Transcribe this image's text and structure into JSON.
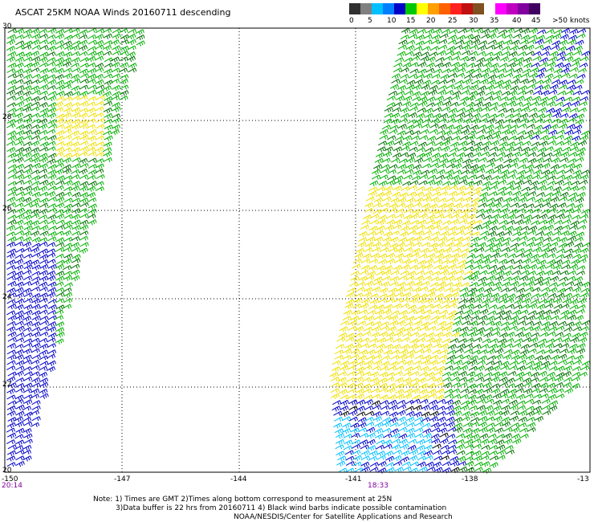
{
  "header": {
    "title": "ASCAT 25KM NOAA Winds 20160711 descending"
  },
  "legend": {
    "colors": [
      "#303030",
      "#808080",
      "#00c0ff",
      "#0080ff",
      "#0000c8",
      "#00c800",
      "#ffff00",
      "#ffa000",
      "#ff6000",
      "#ff2020",
      "#c01010",
      "#805020",
      "#ffffff",
      "#ff00ff",
      "#c000c0",
      "#8000a0",
      "#400060"
    ],
    "labels": [
      "0",
      "5",
      "10",
      "15",
      "20",
      "25",
      "30",
      "35",
      "40",
      "45",
      ">50 knots"
    ]
  },
  "axes": {
    "lat_labels": [
      "30",
      "28",
      "26",
      "24",
      "22",
      "20"
    ],
    "lon_labels": [
      "-150",
      "-147",
      "-144",
      "-141",
      "-138",
      "-13"
    ]
  },
  "pass_times": [
    "20:14",
    "18:33"
  ],
  "footer": {
    "line1": "Note: 1) Times are GMT 2)Times along bottom correspond to measurement at 25N",
    "line2": "3)Data buffer is 22 hrs from 20160711 4) Black wind barbs indicate possible contamination",
    "line3": "NOAA/NESDIS/Center for Satellite Applications and Research"
  },
  "wind_colors": {
    "blue": "#0000c8",
    "cyan": "#00c0ff",
    "green": "#00b000",
    "dark_green": "#007000",
    "yellow": "#f0e000",
    "black": "#000000"
  }
}
